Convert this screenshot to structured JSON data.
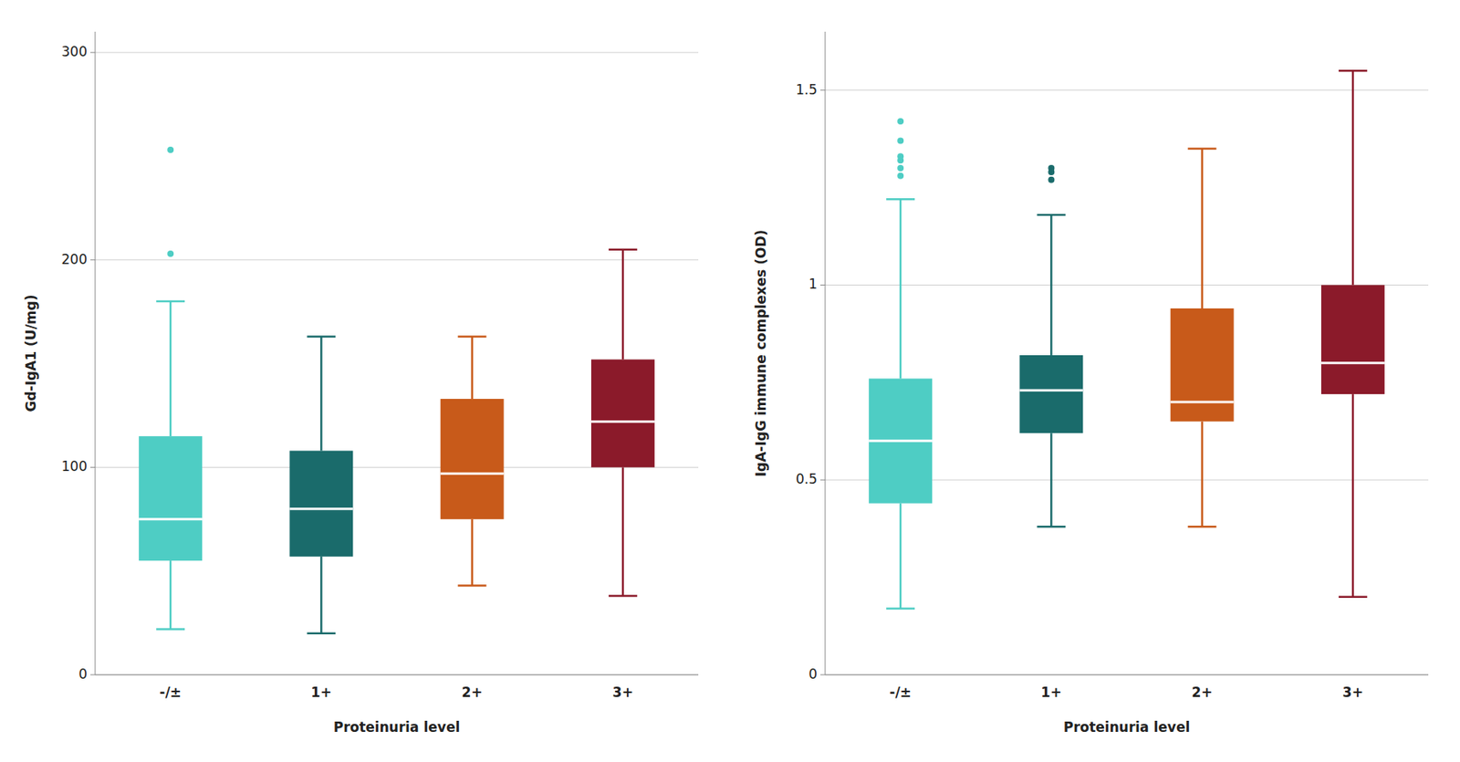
{
  "chart_data": [
    {
      "type": "box",
      "ylabel": "Gd-IgA1 (U/mg)",
      "xlabel": "Proteinuria level",
      "categories": [
        "-/±",
        "1+",
        "2+",
        "3+"
      ],
      "colors": [
        "#4ECDC4",
        "#1A6B6B",
        "#C85A1A",
        "#8B1A2A"
      ],
      "boxes": [
        {
          "whislo": 22,
          "q1": 55,
          "med": 75,
          "q3": 115,
          "whishi": 180,
          "fliers": [
            203,
            253
          ]
        },
        {
          "whislo": 20,
          "q1": 57,
          "med": 80,
          "q3": 108,
          "whishi": 163,
          "fliers": []
        },
        {
          "whislo": 43,
          "q1": 75,
          "med": 97,
          "q3": 133,
          "whishi": 163,
          "fliers": []
        },
        {
          "whislo": 38,
          "q1": 100,
          "med": 122,
          "q3": 152,
          "whishi": 205,
          "fliers": []
        }
      ],
      "ylim": [
        0,
        310
      ],
      "yticks": [
        0,
        100,
        200,
        300
      ],
      "grid": true
    },
    {
      "type": "box",
      "ylabel": "IgA-IgG immune complexes (OD)",
      "xlabel": "Proteinuria level",
      "categories": [
        "-/±",
        "1+",
        "2+",
        "3+"
      ],
      "colors": [
        "#4ECDC4",
        "#1A6B6B",
        "#C85A1A",
        "#8B1A2A"
      ],
      "boxes": [
        {
          "whislo": 0.17,
          "q1": 0.44,
          "med": 0.6,
          "q3": 0.76,
          "whishi": 1.22,
          "fliers": [
            1.28,
            1.3,
            1.32,
            1.33,
            1.37,
            1.42
          ]
        },
        {
          "whislo": 0.38,
          "q1": 0.62,
          "med": 0.73,
          "q3": 0.82,
          "whishi": 1.18,
          "fliers": [
            1.27,
            1.29,
            1.3
          ]
        },
        {
          "whislo": 0.38,
          "q1": 0.65,
          "med": 0.7,
          "q3": 0.94,
          "whishi": 1.35,
          "fliers": []
        },
        {
          "whislo": 0.2,
          "q1": 0.72,
          "med": 0.8,
          "q3": 1.0,
          "whishi": 1.55,
          "fliers": []
        }
      ],
      "ylim": [
        0,
        1.65
      ],
      "yticks": [
        0,
        0.5,
        1,
        1.5
      ],
      "grid": true
    }
  ]
}
